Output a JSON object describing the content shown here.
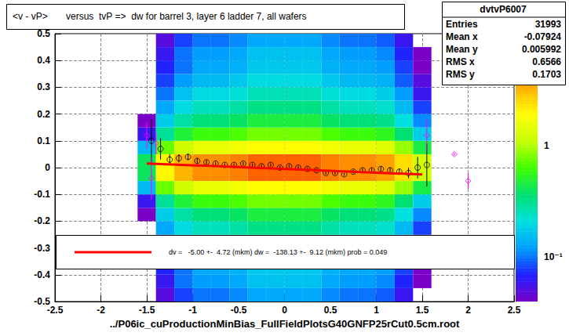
{
  "chart_data": {
    "type": "heatmap",
    "title": "<v - vP>       versus  tvP =>  dw for barrel 3, layer 6 ladder 7, all wafers",
    "x_label": "../P06ic_cuProductionMinBias_FullFieldPlotsG40GNFP25rCut0.5cm.root",
    "xlim": [
      -2.5,
      2.5
    ],
    "xticks": [
      -2.5,
      -2,
      -1.5,
      -1,
      -0.5,
      0,
      0.5,
      1,
      1.5,
      2,
      2.5
    ],
    "ylim": [
      -0.5,
      0.5
    ],
    "yticks": [
      -0.5,
      -0.4,
      -0.3,
      -0.2,
      -0.1,
      0,
      0.1,
      0.2,
      0.3,
      0.4,
      0.5
    ],
    "grid": true,
    "cells": {
      "x_bins": [
        -1.6,
        -1.4,
        -1.2,
        -1,
        -0.8,
        -0.6,
        -0.4,
        -0.2,
        0,
        0.2,
        0.4,
        0.6,
        0.8,
        1,
        1.2,
        1.4,
        1.6
      ],
      "y_bins": [
        -0.5,
        -0.45,
        -0.4,
        -0.35,
        -0.3,
        -0.25,
        -0.2,
        -0.15,
        -0.1,
        -0.05,
        0,
        0.05,
        0.1,
        0.15,
        0.2,
        0.25,
        0.3,
        0.35,
        0.4,
        0.45,
        0.5
      ],
      "values": [
        [
          0.01,
          0.05,
          0.08,
          0.1,
          0.1,
          0.11,
          0.13,
          0.13,
          0.13,
          0.13,
          0.11,
          0.1,
          0.1,
          0.09,
          0.06,
          0.03
        ],
        [
          0.01,
          0.06,
          0.1,
          0.12,
          0.12,
          0.13,
          0.16,
          0.16,
          0.16,
          0.16,
          0.13,
          0.12,
          0.12,
          0.11,
          0.07,
          0.04
        ],
        [
          0.01,
          0.07,
          0.1,
          0.13,
          0.13,
          0.14,
          0.17,
          0.17,
          0.17,
          0.17,
          0.14,
          0.13,
          0.13,
          0.12,
          0.08,
          0.04
        ],
        [
          0.02,
          0.08,
          0.12,
          0.15,
          0.15,
          0.17,
          0.2,
          0.2,
          0.2,
          0.2,
          0.17,
          0.15,
          0.15,
          0.14,
          0.09,
          0.05
        ],
        [
          0.02,
          0.1,
          0.16,
          0.2,
          0.2,
          0.22,
          0.26,
          0.26,
          0.26,
          0.26,
          0.22,
          0.2,
          0.2,
          0.18,
          0.12,
          0.06
        ],
        [
          0.03,
          0.13,
          0.2,
          0.25,
          0.25,
          0.28,
          0.33,
          0.33,
          0.33,
          0.33,
          0.28,
          0.25,
          0.25,
          0.23,
          0.15,
          0.08
        ],
        [
          0.04,
          0.18,
          0.28,
          0.35,
          0.35,
          0.39,
          0.46,
          0.46,
          0.46,
          0.46,
          0.39,
          0.35,
          0.35,
          0.32,
          0.21,
          0.11
        ],
        [
          0.06,
          0.3,
          0.48,
          0.6,
          0.6,
          0.66,
          0.78,
          0.78,
          0.78,
          0.78,
          0.66,
          0.6,
          0.6,
          0.54,
          0.36,
          0.18
        ],
        [
          0.15,
          0.75,
          1.2,
          1.5,
          1.5,
          1.65,
          1.95,
          1.95,
          1.95,
          1.95,
          1.65,
          1.5,
          1.5,
          1.35,
          0.9,
          0.45
        ],
        [
          0.4,
          2,
          3.2,
          4,
          4,
          4.4,
          5.2,
          5.2,
          5.2,
          5.2,
          4.4,
          4,
          4,
          3.6,
          2.4,
          1.2
        ],
        [
          0.4,
          2,
          3.2,
          4,
          4,
          4.4,
          5.2,
          5.2,
          5.2,
          5.2,
          4.4,
          4,
          4,
          3.6,
          2.4,
          1.2
        ],
        [
          0.15,
          0.75,
          1.2,
          1.5,
          1.5,
          1.65,
          1.95,
          1.95,
          1.95,
          1.95,
          1.65,
          1.5,
          1.5,
          1.35,
          0.9,
          0.45
        ],
        [
          0.06,
          0.3,
          0.48,
          0.6,
          0.6,
          0.66,
          0.78,
          0.78,
          0.78,
          0.78,
          0.66,
          0.6,
          0.6,
          0.54,
          0.36,
          0.18
        ],
        [
          0.04,
          0.18,
          0.28,
          0.35,
          0.35,
          0.39,
          0.46,
          0.46,
          0.46,
          0.46,
          0.39,
          0.35,
          0.35,
          0.32,
          0.21,
          0.11
        ],
        [
          0.03,
          0.13,
          0.2,
          0.25,
          0.25,
          0.28,
          0.33,
          0.33,
          0.33,
          0.33,
          0.28,
          0.25,
          0.25,
          0.23,
          0.15,
          0.08
        ],
        [
          0.02,
          0.1,
          0.16,
          0.2,
          0.2,
          0.22,
          0.26,
          0.26,
          0.26,
          0.26,
          0.22,
          0.2,
          0.2,
          0.18,
          0.12,
          0.06
        ],
        [
          0.02,
          0.08,
          0.12,
          0.15,
          0.15,
          0.17,
          0.2,
          0.2,
          0.2,
          0.2,
          0.17,
          0.15,
          0.15,
          0.14,
          0.09,
          0.05
        ],
        [
          0.01,
          0.07,
          0.1,
          0.13,
          0.13,
          0.14,
          0.17,
          0.17,
          0.17,
          0.17,
          0.14,
          0.13,
          0.13,
          0.12,
          0.08,
          0.04
        ],
        [
          0.01,
          0.06,
          0.1,
          0.12,
          0.12,
          0.13,
          0.16,
          0.16,
          0.16,
          0.16,
          0.13,
          0.12,
          0.12,
          0.11,
          0.07,
          0.04
        ],
        [
          0.01,
          0.05,
          0.08,
          0.1,
          0.1,
          0.11,
          0.13,
          0.13,
          0.13,
          0.13,
          0.11,
          0.1,
          0.1,
          0.09,
          0.06,
          0.03
        ]
      ]
    },
    "zlim": [
      0.04,
      10
    ],
    "zticks": [
      {
        "value": 0.1,
        "label": "10⁻¹"
      },
      1
    ],
    "series": [
      {
        "type": "scatter",
        "marker": "circle",
        "color": "#000000",
        "x": [
          -1.45,
          -1.35,
          -1.25,
          -1.15,
          -1.05,
          -0.95,
          -0.85,
          -0.75,
          -0.65,
          -0.55,
          -0.45,
          -0.35,
          -0.25,
          -0.15,
          -0.05,
          0.05,
          0.15,
          0.25,
          0.35,
          0.45,
          0.55,
          0.65,
          0.75,
          0.85,
          0.95,
          1.05,
          1.15,
          1.25,
          1.35,
          1.45,
          1.55
        ],
        "y": [
          0.1,
          0.07,
          0.03,
          0.035,
          0.04,
          0.025,
          0.02,
          0.015,
          0.01,
          0.01,
          0.015,
          0.01,
          0.005,
          0.01,
          0,
          0.005,
          0,
          -0.005,
          -0.01,
          -0.02,
          -0.02,
          -0.025,
          -0.015,
          -0.01,
          -0.01,
          -0.005,
          -0.01,
          -0.015,
          -0.02,
          0,
          0.01
        ],
        "errors": [
          0.08,
          0.04,
          0.02,
          0.015,
          0.012,
          0.01,
          0.008,
          0.007,
          0.006,
          0.006,
          0.006,
          0.006,
          0.006,
          0.006,
          0.006,
          0.006,
          0.006,
          0.006,
          0.006,
          0.006,
          0.006,
          0.006,
          0.007,
          0.007,
          0.008,
          0.009,
          0.01,
          0.012,
          0.02,
          0.04,
          0.08
        ]
      },
      {
        "type": "scatter",
        "marker": "diamond",
        "color": "#ff00ff",
        "x": [
          -1.5,
          -1.45,
          -1.4,
          1.55,
          1.85,
          2
        ],
        "y": [
          0.12,
          -0.04,
          0.09,
          0.12,
          0.05,
          -0.05
        ],
        "errors": [
          0.05,
          0.08,
          0.04,
          0.06,
          0.005,
          0.03
        ]
      },
      {
        "type": "line",
        "name": "dv =   -5.00 +-  4.72 (mkm) dw =  -138.13 +-  9.12 (mkm) prob = 0.049",
        "color": "#ff0000",
        "x": [
          -1.5,
          1.5
        ],
        "y": [
          0.0157,
          -0.0257
        ]
      }
    ],
    "stats": {
      "title": "dvtvP6007",
      "rows": [
        {
          "label": "Entries",
          "value": 31993
        },
        {
          "label": "Mean x",
          "value": -0.07924
        },
        {
          "label": "Mean y",
          "value": 0.005992
        },
        {
          "label": "RMS x",
          "value": 0.6566
        },
        {
          "label": "RMS y",
          "value": 0.1703
        }
      ]
    }
  }
}
